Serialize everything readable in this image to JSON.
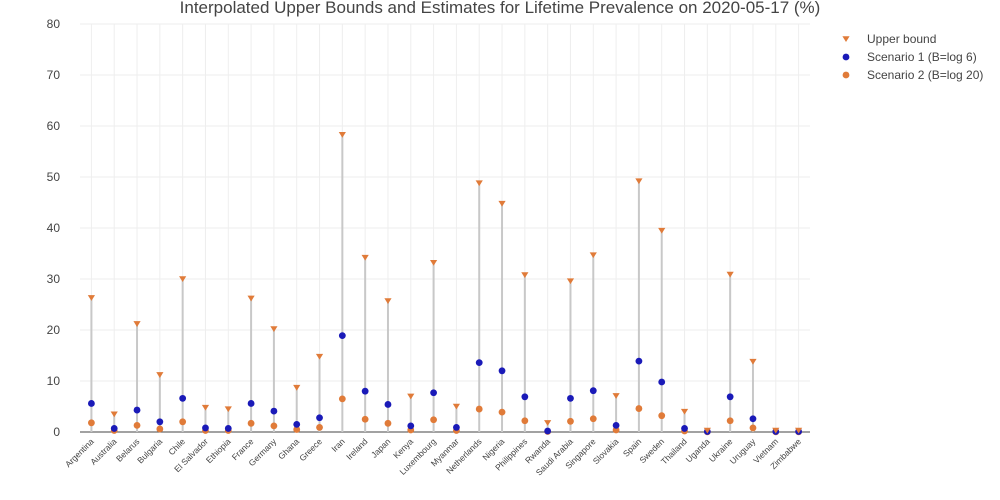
{
  "chart_data": {
    "type": "scatter",
    "title": "Interpolated Upper Bounds and Estimates for Lifetime Prevalence on 2020-05-17 (%)",
    "xlabel": "",
    "ylabel": "",
    "ylim": [
      0,
      80
    ],
    "yticks": [
      0,
      10,
      20,
      30,
      40,
      50,
      60,
      70,
      80
    ],
    "grid": true,
    "legend_position": "top-right",
    "categories": [
      "Argentina",
      "Australia",
      "Belarus",
      "Bulgaria",
      "Chile",
      "El Salvador",
      "Ethiopia",
      "France",
      "Germany",
      "Ghana",
      "Greece",
      "Iran",
      "Ireland",
      "Japan",
      "Kenya",
      "Luxembourg",
      "Myanmar",
      "Netherlands",
      "Nigeria",
      "Philippines",
      "Rwanda",
      "Saudi Arabia",
      "Singapore",
      "Slovakia",
      "Spain",
      "Sweden",
      "Thailand",
      "Uganda",
      "Ukraine",
      "Uruguay",
      "Vietnam",
      "Zimbabwe"
    ],
    "series": [
      {
        "name": "Upper bound",
        "marker": "triangle-down",
        "color": "#e07b39",
        "values": [
          26.3,
          3.5,
          21.2,
          11.2,
          30.0,
          4.8,
          4.5,
          26.2,
          20.2,
          8.7,
          14.8,
          58.3,
          34.2,
          25.7,
          7.0,
          33.2,
          5.0,
          48.8,
          44.8,
          30.8,
          1.8,
          29.6,
          34.7,
          7.1,
          49.2,
          39.5,
          4.0,
          0.3,
          30.9,
          13.8,
          0.3,
          0.3
        ]
      },
      {
        "name": "Scenario 1 (B=log 6)",
        "marker": "circle",
        "color": "#1a1ab8",
        "values": [
          5.6,
          0.7,
          4.3,
          2.0,
          6.6,
          0.8,
          0.7,
          5.6,
          4.1,
          1.5,
          2.8,
          18.9,
          8.0,
          5.4,
          1.2,
          7.7,
          0.9,
          13.6,
          12.0,
          6.9,
          0.2,
          6.6,
          8.1,
          1.3,
          13.9,
          9.8,
          0.7,
          0.1,
          6.9,
          2.6,
          0.1,
          0.1
        ]
      },
      {
        "name": "Scenario 2 (B=log 20)",
        "marker": "circle",
        "color": "#e07b39",
        "values": [
          1.8,
          0.3,
          1.3,
          0.6,
          2.0,
          0.3,
          0.3,
          1.7,
          1.2,
          0.5,
          0.9,
          6.5,
          2.5,
          1.7,
          0.4,
          2.4,
          0.3,
          4.5,
          3.9,
          2.2,
          0.1,
          2.1,
          2.6,
          0.4,
          4.6,
          3.2,
          0.2,
          0.04,
          2.2,
          0.8,
          0.04,
          0.04
        ]
      }
    ]
  }
}
